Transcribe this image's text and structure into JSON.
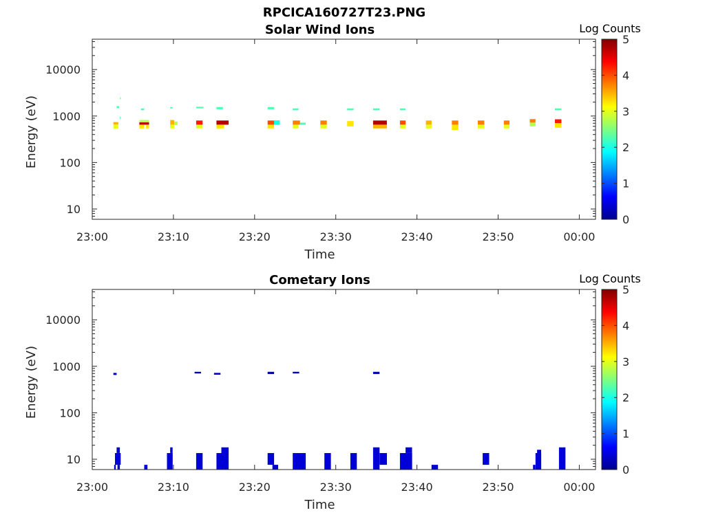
{
  "figure_title": "RPCICA160727T23.PNG",
  "chart_data": [
    {
      "type": "heatmap",
      "title": "Solar Wind Ions",
      "xlabel": "Time",
      "ylabel": "Energy (eV)",
      "x_ticks": [
        "23:00",
        "23:10",
        "23:20",
        "23:30",
        "23:40",
        "23:50",
        "00:00"
      ],
      "x_range_minutes": [
        0,
        62
      ],
      "y_scale": "log",
      "y_ticks": [
        "10",
        "100",
        "1000",
        "10000"
      ],
      "y_range": [
        6,
        45000
      ],
      "colorbar": {
        "title": "Log Counts",
        "range": [
          0,
          5
        ],
        "ticks": [
          "0",
          "1",
          "2",
          "3",
          "4",
          "5"
        ],
        "colormap": "jet"
      },
      "cells": [
        [
          3.0,
          3.3,
          1480,
          1640,
          0.45
        ],
        [
          3.4,
          3.5,
          2280,
          2520,
          0.5
        ],
        [
          3.4,
          3.5,
          880,
          970,
          0.45
        ],
        [
          2.6,
          3.2,
          650,
          740,
          0.7
        ],
        [
          2.6,
          3.2,
          540,
          640,
          0.6
        ],
        [
          6.0,
          6.4,
          1330,
          1460,
          0.45
        ],
        [
          5.8,
          7.0,
          730,
          820,
          0.55
        ],
        [
          5.8,
          7.0,
          650,
          730,
          0.95
        ],
        [
          5.8,
          6.4,
          540,
          650,
          0.65
        ],
        [
          6.6,
          7.0,
          540,
          650,
          0.65
        ],
        [
          9.6,
          9.9,
          1450,
          1560,
          0.45
        ],
        [
          9.6,
          10.1,
          650,
          820,
          0.7
        ],
        [
          9.6,
          10.1,
          540,
          650,
          0.6
        ],
        [
          10.1,
          10.5,
          640,
          760,
          0.55
        ],
        [
          12.8,
          13.7,
          1460,
          1580,
          0.45
        ],
        [
          12.8,
          13.6,
          650,
          800,
          0.85
        ],
        [
          12.8,
          13.6,
          540,
          650,
          0.6
        ],
        [
          15.3,
          16.1,
          1400,
          1560,
          0.45
        ],
        [
          15.3,
          16.8,
          650,
          800,
          0.95
        ],
        [
          15.3,
          16.2,
          540,
          650,
          0.65
        ],
        [
          21.6,
          22.4,
          1400,
          1560,
          0.45
        ],
        [
          21.6,
          23.1,
          650,
          800,
          0.8
        ],
        [
          21.6,
          22.4,
          540,
          650,
          0.65
        ],
        [
          22.4,
          23.1,
          650,
          800,
          0.4
        ],
        [
          24.7,
          25.4,
          1330,
          1460,
          0.45
        ],
        [
          24.7,
          25.6,
          650,
          800,
          0.75
        ],
        [
          24.7,
          25.4,
          540,
          650,
          0.6
        ],
        [
          25.6,
          26.3,
          650,
          720,
          0.45
        ],
        [
          28.1,
          28.9,
          650,
          800,
          0.75
        ],
        [
          28.1,
          28.9,
          540,
          650,
          0.6
        ],
        [
          31.4,
          32.2,
          1330,
          1460,
          0.45
        ],
        [
          31.4,
          32.2,
          600,
          780,
          0.65
        ],
        [
          34.6,
          35.4,
          1330,
          1460,
          0.45
        ],
        [
          34.6,
          36.3,
          650,
          800,
          0.95
        ],
        [
          34.6,
          36.3,
          540,
          650,
          0.7
        ],
        [
          37.9,
          38.6,
          1330,
          1460,
          0.45
        ],
        [
          37.9,
          38.6,
          650,
          800,
          0.8
        ],
        [
          37.9,
          38.6,
          540,
          650,
          0.6
        ],
        [
          41.1,
          41.8,
          650,
          800,
          0.7
        ],
        [
          41.1,
          41.8,
          540,
          650,
          0.6
        ],
        [
          44.3,
          45.1,
          650,
          800,
          0.75
        ],
        [
          44.3,
          45.1,
          500,
          650,
          0.65
        ],
        [
          47.5,
          48.3,
          650,
          800,
          0.75
        ],
        [
          47.5,
          48.3,
          540,
          650,
          0.6
        ],
        [
          50.7,
          51.4,
          650,
          800,
          0.75
        ],
        [
          50.7,
          51.4,
          540,
          650,
          0.6
        ],
        [
          53.9,
          54.6,
          720,
          860,
          0.75
        ],
        [
          53.9,
          54.6,
          600,
          720,
          0.55
        ],
        [
          57.0,
          57.8,
          1330,
          1460,
          0.45
        ],
        [
          57.0,
          57.8,
          700,
          850,
          0.85
        ],
        [
          57.0,
          57.8,
          560,
          700,
          0.65
        ]
      ]
    },
    {
      "type": "heatmap",
      "title": "Cometary Ions",
      "xlabel": "Time",
      "ylabel": "Energy (eV)",
      "x_ticks": [
        "23:00",
        "23:10",
        "23:20",
        "23:30",
        "23:40",
        "23:50",
        "00:00"
      ],
      "x_range_minutes": [
        0,
        62
      ],
      "y_scale": "log",
      "y_ticks": [
        "10",
        "100",
        "1000",
        "10000"
      ],
      "y_range": [
        6,
        45000
      ],
      "colorbar": {
        "title": "Log Counts",
        "range": [
          0,
          5
        ],
        "ticks": [
          "0",
          "1",
          "2",
          "3",
          "4",
          "5"
        ],
        "colormap": "jet"
      },
      "cells": [
        [
          2.6,
          3.0,
          650,
          720,
          0.05
        ],
        [
          12.6,
          13.4,
          700,
          760,
          0.05
        ],
        [
          15.0,
          15.8,
          660,
          720,
          0.05
        ],
        [
          21.6,
          22.4,
          680,
          760,
          0.05
        ],
        [
          24.7,
          25.5,
          700,
          760,
          0.05
        ],
        [
          34.6,
          35.4,
          680,
          760,
          0.08
        ],
        [
          2.8,
          3.5,
          7.6,
          13.6,
          0.08
        ],
        [
          3.0,
          3.4,
          13.6,
          18,
          0.08
        ],
        [
          3.1,
          3.4,
          6,
          7.6,
          0.08
        ],
        [
          2.7,
          2.9,
          6,
          7.6,
          0.08
        ],
        [
          6.4,
          6.8,
          6,
          7.6,
          0.08
        ],
        [
          9.2,
          9.9,
          6,
          13.6,
          0.08
        ],
        [
          9.6,
          9.9,
          13.6,
          18,
          0.08
        ],
        [
          12.8,
          13.6,
          6,
          13.6,
          0.08
        ],
        [
          15.3,
          16.2,
          6,
          13.6,
          0.08
        ],
        [
          15.9,
          16.8,
          6,
          18,
          0.08
        ],
        [
          21.6,
          22.4,
          7.6,
          13.6,
          0.08
        ],
        [
          22.2,
          22.9,
          6,
          7.6,
          0.08
        ],
        [
          24.7,
          26.3,
          6,
          13.6,
          0.08
        ],
        [
          28.6,
          29.4,
          6,
          13.6,
          0.08
        ],
        [
          31.8,
          32.6,
          6,
          13.6,
          0.08
        ],
        [
          34.6,
          35.4,
          6,
          18,
          0.08
        ],
        [
          35.4,
          36.3,
          7.6,
          13.6,
          0.08
        ],
        [
          37.9,
          39.4,
          6,
          13.6,
          0.08
        ],
        [
          38.6,
          39.4,
          13.6,
          18,
          0.08
        ],
        [
          41.8,
          42.6,
          6,
          7.6,
          0.08
        ],
        [
          48.1,
          48.9,
          7.6,
          13.6,
          0.08
        ],
        [
          54.3,
          54.6,
          6,
          7.6,
          0.08
        ],
        [
          54.6,
          55.3,
          6,
          13.6,
          0.08
        ],
        [
          54.8,
          55.3,
          13.6,
          16,
          0.08
        ],
        [
          57.5,
          58.3,
          6,
          18,
          0.08
        ]
      ]
    }
  ]
}
